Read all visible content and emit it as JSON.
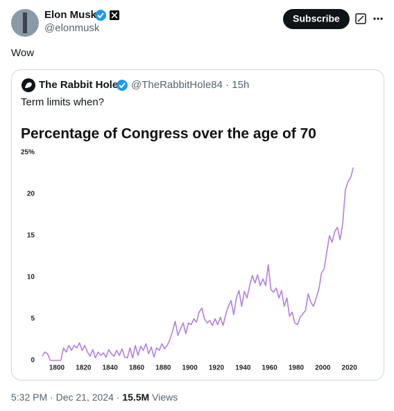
{
  "tweet": {
    "author": {
      "name": "Elon Musk",
      "handle": "@elonmusk"
    },
    "subscribe": "Subscribe",
    "text": "Wow",
    "quote": {
      "name": "The Rabbit Hole",
      "meta": "@TheRabbitHole84 · 15h",
      "text": "Term limits when?"
    },
    "footer": {
      "time": "5:32 PM · Dec 21, 2024 ·",
      "views_count": "15.5M",
      "views_label": "Views"
    }
  },
  "chart_data": {
    "type": "line",
    "title": "Percentage of Congress over the age of 70",
    "color": "#b57edc",
    "x": [
      1789,
      1791,
      1793,
      1795,
      1797,
      1799,
      1801,
      1803,
      1805,
      1807,
      1809,
      1811,
      1813,
      1815,
      1817,
      1819,
      1821,
      1823,
      1825,
      1827,
      1829,
      1831,
      1833,
      1835,
      1837,
      1839,
      1841,
      1843,
      1845,
      1847,
      1849,
      1851,
      1853,
      1855,
      1857,
      1859,
      1861,
      1863,
      1865,
      1867,
      1869,
      1871,
      1873,
      1875,
      1877,
      1879,
      1881,
      1883,
      1885,
      1887,
      1889,
      1891,
      1893,
      1895,
      1897,
      1899,
      1901,
      1903,
      1905,
      1907,
      1909,
      1911,
      1913,
      1915,
      1917,
      1919,
      1921,
      1923,
      1925,
      1927,
      1929,
      1931,
      1933,
      1935,
      1937,
      1939,
      1941,
      1943,
      1945,
      1947,
      1949,
      1951,
      1953,
      1955,
      1957,
      1959,
      1961,
      1963,
      1965,
      1967,
      1969,
      1971,
      1973,
      1975,
      1977,
      1979,
      1981,
      1983,
      1985,
      1987,
      1989,
      1991,
      1993,
      1995,
      1997,
      1999,
      2001,
      2003,
      2005,
      2007,
      2009,
      2011,
      2013,
      2015,
      2017,
      2019,
      2021,
      2023
    ],
    "values": [
      0.5,
      1,
      0.8,
      0,
      0,
      0,
      0,
      0,
      1.5,
      1,
      1.8,
      1.2,
      1.8,
      1.5,
      2.1,
      1.2,
      1.8,
      1,
      0.5,
      1.3,
      0.3,
      1,
      0.6,
      0.9,
      0.4,
      1.3,
      0.8,
      0.5,
      1.2,
      0.6,
      1.4,
      0.4,
      0.3,
      1.5,
      0.3,
      1.8,
      0.6,
      1.7,
      1.2,
      2,
      0.8,
      1.6,
      0.4,
      1.5,
      1.2,
      2,
      1.4,
      1.8,
      2.5,
      3.5,
      4.7,
      3,
      3.8,
      4.5,
      3.2,
      4.5,
      4.3,
      5,
      4.6,
      5.8,
      6.3,
      5,
      4.5,
      4.8,
      4.2,
      5,
      4.3,
      5.2,
      4.2,
      5.5,
      6.5,
      7.2,
      5.5,
      7.5,
      8.4,
      6.5,
      8.3,
      7.5,
      9,
      10.2,
      9.3,
      10.3,
      9,
      9.8,
      9,
      11.5,
      8.5,
      8.2,
      8.7,
      7.5,
      8.4,
      6.5,
      7.5,
      5.3,
      5.8,
      4.5,
      4.3,
      5.2,
      5.6,
      6,
      8,
      7,
      6.5,
      7.5,
      8.5,
      10.5,
      11,
      13,
      15,
      14.2,
      15.5,
      16,
      14.5,
      16.5,
      20.5,
      21.5,
      22,
      23.2
    ],
    "xlim": [
      1788,
      2028
    ],
    "xticks": [
      1800,
      1820,
      1840,
      1860,
      1880,
      1900,
      1920,
      1940,
      1960,
      1980,
      2000,
      2020
    ],
    "ylim": [
      0,
      25
    ],
    "yticks": [
      0,
      5,
      10,
      15,
      20,
      {
        "value": 25,
        "label": "25%"
      }
    ]
  }
}
